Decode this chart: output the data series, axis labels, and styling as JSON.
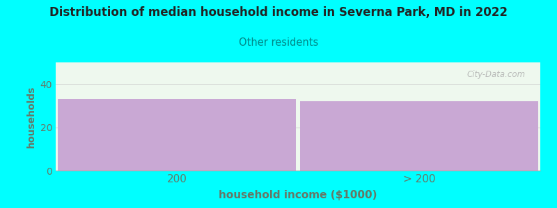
{
  "title": "Distribution of median household income in Severna Park, MD in 2022",
  "subtitle": "Other residents",
  "xlabel": "household income ($1000)",
  "ylabel": "households",
  "background_color": "#00FFFF",
  "plot_top_color": "#EEF8EE",
  "bar_color": "#C9A8D4",
  "categories": [
    "200",
    "> 200"
  ],
  "values": [
    33,
    32
  ],
  "ylim": [
    0,
    50
  ],
  "yticks": [
    0,
    20,
    40
  ],
  "title_color": "#222222",
  "subtitle_color": "#008888",
  "axis_label_color": "#667766",
  "tick_color": "#667766",
  "watermark": "City-Data.com"
}
